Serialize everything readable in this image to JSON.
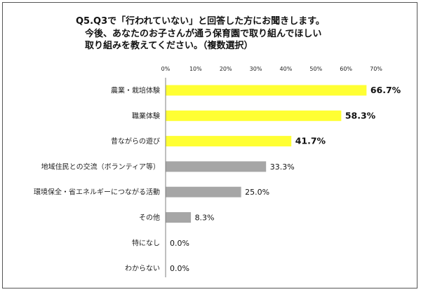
{
  "title": "Q5.Q3で「行われていない」と回答した方にお聞きします。\n　今後、あなたのお子さんが通う保育園で取り組んでほしい\n　取り組みを教えてください。（複数選択）",
  "chart_data": {
    "type": "bar",
    "orientation": "horizontal",
    "xlim": [
      0,
      70
    ],
    "ticks": [
      "0%",
      "10%",
      "20%",
      "30%",
      "40%",
      "50%",
      "60%",
      "70%"
    ],
    "tick_values": [
      0,
      10,
      20,
      30,
      40,
      50,
      60,
      70
    ],
    "categories": [
      "農業・栽培体験",
      "職業体験",
      "昔ながらの遊び",
      "地域住民との交流（ボランティア等）",
      "環境保全・省エネルギーにつながる活動",
      "その他",
      "特になし",
      "わからない"
    ],
    "values": [
      66.7,
      58.3,
      41.7,
      33.3,
      25.0,
      8.3,
      0.0,
      0.0
    ],
    "labels": [
      "66.7%",
      "58.3%",
      "41.7%",
      "33.3%",
      "25.0%",
      "8.3%",
      "0.0%",
      "0.0%"
    ],
    "highlight": [
      true,
      true,
      true,
      false,
      false,
      false,
      false,
      false
    ],
    "colors": {
      "highlight": "#ffff33",
      "normal": "#a6a6a6",
      "axis": "#7f7f7f"
    },
    "grid": false
  }
}
